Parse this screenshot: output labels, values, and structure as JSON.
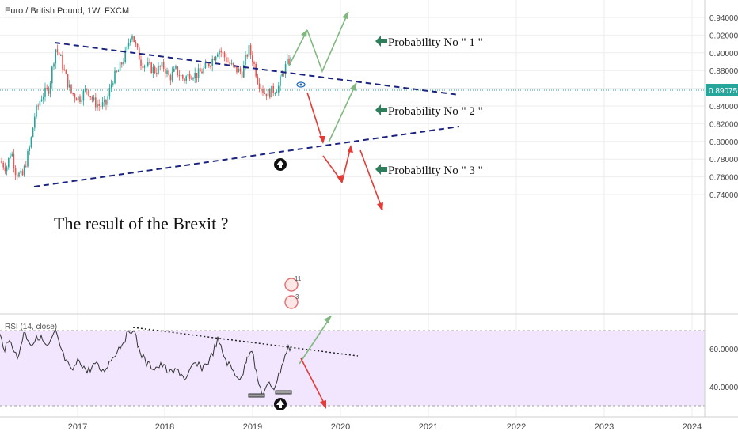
{
  "header": {
    "symbol_title": "Euro / British Pound, 1W, FXCM"
  },
  "price_pane": {
    "y_ticks": [
      "0.94000",
      "0.92000",
      "0.90000",
      "0.88000",
      "0.86000",
      "0.84000",
      "0.82000",
      "0.80000",
      "0.78000",
      "0.76000",
      "0.74000"
    ],
    "current_price": "0.89075",
    "price_tag_color": "#26a69a"
  },
  "rsi_pane": {
    "title": "RSI (14, close)",
    "y_ticks": [
      "60.0000",
      "40.0000"
    ],
    "band_color": "#f1e6fd"
  },
  "x_axis": {
    "ticks": [
      "2017",
      "2018",
      "2019",
      "2020",
      "2021",
      "2022",
      "2023",
      "2024"
    ]
  },
  "annotations": {
    "brexit_question": "The result of the Brexit ?",
    "probability_1": "Probability No \" 1 \"",
    "probability_2": "Probability No \" 2 \"",
    "probability_3": "Probability No \" 3 \"",
    "event_badge_1": "11",
    "event_badge_2": "3"
  },
  "colors": {
    "bull": "#26a69a",
    "bear": "#ef5350",
    "trendline": "#1a237e",
    "arrow_green": "#80b880",
    "arrow_red": "#e53935",
    "marker_arrow": "#4a8a6a"
  },
  "chart_data": {
    "type": "candlestick",
    "title": "Euro / British Pound, 1W, FXCM",
    "y_range": [
      0.74,
      0.945
    ],
    "x_range": [
      "2016-05",
      "2024-01"
    ],
    "last_price": 0.89075,
    "series": [
      {
        "x": [
          "2016-05",
          "2016-06",
          "2016-07",
          "2016-08",
          "2016-09",
          "2016-10",
          "2016-11",
          "2016-12",
          "2017-01",
          "2017-02",
          "2017-03",
          "2017-04",
          "2017-05",
          "2017-06",
          "2017-07",
          "2017-08",
          "2017-09",
          "2017-10",
          "2017-11",
          "2017-12",
          "2018-01",
          "2018-02",
          "2018-03",
          "2018-04",
          "2018-05",
          "2018-06",
          "2018-07",
          "2018-08",
          "2018-09",
          "2018-10",
          "2018-11",
          "2018-12",
          "2019-01",
          "2019-02",
          "2019-03",
          "2019-04",
          "2019-05",
          "2019-06"
        ],
        "values": [
          0.775,
          0.79,
          0.84,
          0.86,
          0.86,
          0.905,
          0.86,
          0.845,
          0.86,
          0.85,
          0.86,
          0.845,
          0.85,
          0.875,
          0.89,
          0.915,
          0.89,
          0.895,
          0.89,
          0.885,
          0.88,
          0.885,
          0.875,
          0.87,
          0.875,
          0.88,
          0.895,
          0.9,
          0.895,
          0.89,
          0.885,
          0.905,
          0.875,
          0.86,
          0.86,
          0.865,
          0.875,
          0.89
        ]
      }
    ],
    "rsi": {
      "y_ticks": [
        60,
        40
      ],
      "overbought": 70,
      "oversold": 30
    }
  }
}
